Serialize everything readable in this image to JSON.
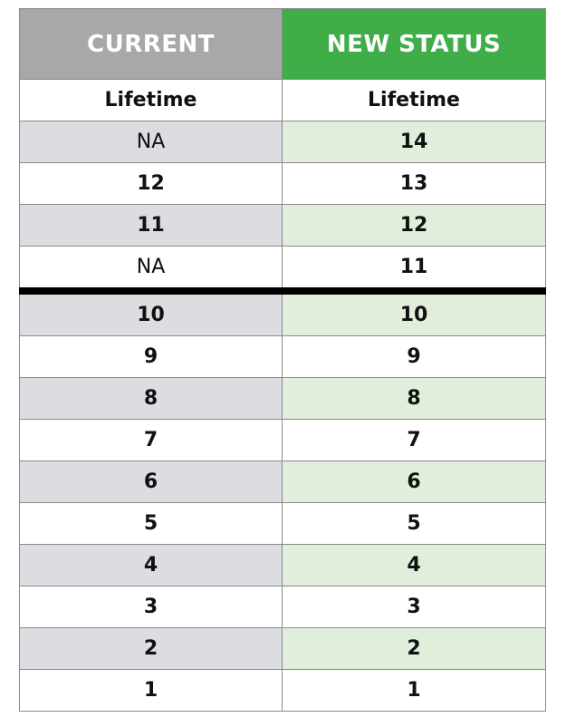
{
  "table": {
    "headers": {
      "current": "CURRENT",
      "new": "NEW STATUS"
    },
    "subheaders": {
      "current": "Lifetime",
      "new": "Lifetime"
    },
    "rows": [
      {
        "current": "NA",
        "new": "14"
      },
      {
        "current": "12",
        "new": "13"
      },
      {
        "current": "11",
        "new": "12"
      },
      {
        "current": "NA",
        "new": "11"
      },
      {
        "current": "10",
        "new": "10"
      },
      {
        "current": "9",
        "new": "9"
      },
      {
        "current": "8",
        "new": "8"
      },
      {
        "current": "7",
        "new": "7"
      },
      {
        "current": "6",
        "new": "6"
      },
      {
        "current": "5",
        "new": "5"
      },
      {
        "current": "4",
        "new": "4"
      },
      {
        "current": "3",
        "new": "3"
      },
      {
        "current": "2",
        "new": "2"
      },
      {
        "current": "1",
        "new": "1"
      }
    ]
  },
  "colors": {
    "current_header": "#a7a8aa",
    "new_header": "#3fae49",
    "current_shade": "#dcdde0",
    "new_shade": "#e1eedb",
    "divider": "#000000"
  }
}
